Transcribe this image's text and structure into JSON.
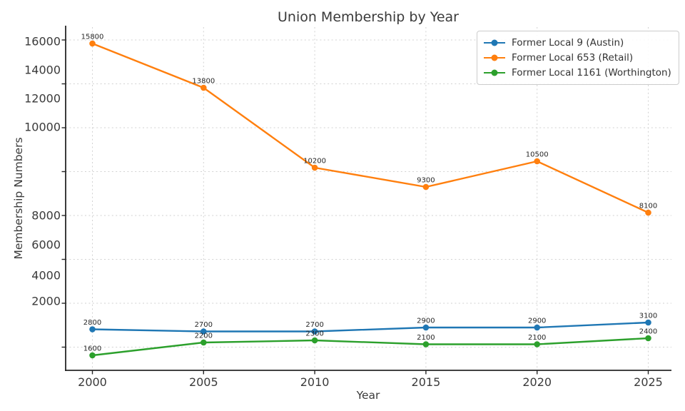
{
  "chart_data": {
    "type": "line",
    "title": "Union Membership by Year",
    "xlabel": "Year",
    "ylabel": "Membership Numbers",
    "x": [
      2000,
      2005,
      2010,
      2015,
      2020,
      2025
    ],
    "x_tick_labels": [
      "2000",
      "2005",
      "2010",
      "2015",
      "2020",
      "2025"
    ],
    "y_tick_labels": [
      "16000",
      "14000",
      "12000",
      "10000",
      "8000",
      "6000",
      "4000",
      "2000"
    ],
    "series": [
      {
        "name": "Former Local 9 (Austin)",
        "color": "#1f77b4",
        "values": [
          2800,
          2700,
          2700,
          2900,
          2900,
          3100
        ]
      },
      {
        "name": "Former Local 653 (Retail)",
        "color": "#ff7f0e",
        "values": [
          15800,
          13800,
          10200,
          9300,
          10500,
          8100
        ]
      },
      {
        "name": "Former Local 1161 (Worthington)",
        "color": "#2ca02c",
        "values": [
          1600,
          2200,
          2300,
          2100,
          2100,
          2400
        ]
      }
    ],
    "point_labels": true,
    "grid": true,
    "legend_position": "upper right",
    "y_scale_note": "y tick labels are unevenly spaced relative to the uniform gridlines"
  },
  "style": {
    "background": "#ffffff",
    "grid_color": "#d2d2d2",
    "axis_color": "#262626",
    "tick_text_color": "#3a3a3a",
    "data_label_color": "#262626",
    "legend_border_color": "#cccccc"
  }
}
